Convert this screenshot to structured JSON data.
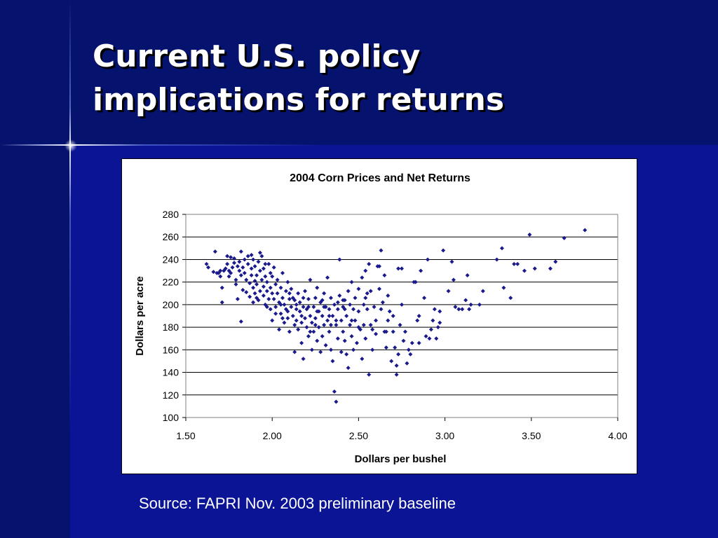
{
  "slide": {
    "title": "Current U.S. policy\nimplications for returns",
    "source": "Source: FAPRI Nov. 2003 preliminary baseline"
  },
  "colors": {
    "background": "#0a1494",
    "band": "#05126e",
    "marker": "#1a1a8c",
    "title_text": "#ffffff"
  },
  "chart_data": {
    "type": "scatter",
    "title": "2004 Corn Prices and Net Returns",
    "xlabel": "Dollars per bushel",
    "ylabel": "Dollars per acre",
    "xlim": [
      1.5,
      4.0
    ],
    "ylim": [
      100,
      280
    ],
    "xticks": [
      "1.50",
      "2.00",
      "2.50",
      "3.00",
      "3.50",
      "4.00"
    ],
    "yticks": [
      "100",
      "120",
      "140",
      "160",
      "180",
      "200",
      "220",
      "240",
      "260",
      "280"
    ],
    "grid": "horizontal",
    "legend": "none",
    "marker": "diamond",
    "points": [
      [
        1.62,
        236
      ],
      [
        1.63,
        233
      ],
      [
        1.66,
        229
      ],
      [
        1.67,
        247
      ],
      [
        1.69,
        228
      ],
      [
        1.7,
        230
      ],
      [
        1.7,
        225
      ],
      [
        1.71,
        215
      ],
      [
        1.71,
        202
      ],
      [
        1.72,
        230
      ],
      [
        1.74,
        236
      ],
      [
        1.74,
        243
      ],
      [
        1.75,
        230
      ],
      [
        1.75,
        225
      ],
      [
        1.76,
        242
      ],
      [
        1.76,
        228
      ],
      [
        1.77,
        233
      ],
      [
        1.78,
        237
      ],
      [
        1.78,
        241
      ],
      [
        1.79,
        222
      ],
      [
        1.79,
        218
      ],
      [
        1.8,
        205
      ],
      [
        1.8,
        234
      ],
      [
        1.81,
        230
      ],
      [
        1.81,
        238
      ],
      [
        1.82,
        247
      ],
      [
        1.82,
        226
      ],
      [
        1.82,
        185
      ],
      [
        1.83,
        233
      ],
      [
        1.83,
        213
      ],
      [
        1.84,
        240
      ],
      [
        1.84,
        228
      ],
      [
        1.85,
        222
      ],
      [
        1.85,
        211
      ],
      [
        1.86,
        236
      ],
      [
        1.86,
        243
      ],
      [
        1.87,
        219
      ],
      [
        1.87,
        207
      ],
      [
        1.88,
        232
      ],
      [
        1.88,
        226
      ],
      [
        1.89,
        240
      ],
      [
        1.89,
        215
      ],
      [
        1.89,
        202
      ],
      [
        1.9,
        234
      ],
      [
        1.9,
        221
      ],
      [
        1.9,
        210
      ],
      [
        1.91,
        226
      ],
      [
        1.91,
        218
      ],
      [
        1.92,
        238
      ],
      [
        1.92,
        204
      ],
      [
        1.93,
        230
      ],
      [
        1.93,
        246
      ],
      [
        1.93,
        212
      ],
      [
        1.94,
        243
      ],
      [
        1.94,
        222
      ],
      [
        1.95,
        216
      ],
      [
        1.95,
        208
      ],
      [
        1.95,
        232
      ],
      [
        1.96,
        200
      ],
      [
        1.96,
        225
      ],
      [
        1.97,
        220
      ],
      [
        1.97,
        212
      ],
      [
        1.98,
        236
      ],
      [
        1.98,
        205
      ],
      [
        1.99,
        228
      ],
      [
        1.99,
        215
      ],
      [
        1.99,
        196
      ],
      [
        2.0,
        210
      ],
      [
        2.0,
        225
      ],
      [
        2.0,
        186
      ],
      [
        2.01,
        205
      ],
      [
        2.01,
        233
      ],
      [
        2.02,
        218
      ],
      [
        2.02,
        198
      ],
      [
        2.03,
        222
      ],
      [
        2.03,
        210
      ],
      [
        2.04,
        178
      ],
      [
        2.04,
        202
      ],
      [
        2.05,
        215
      ],
      [
        2.05,
        192
      ],
      [
        2.06,
        206
      ],
      [
        2.06,
        228
      ],
      [
        2.07,
        200
      ],
      [
        2.07,
        184
      ],
      [
        2.08,
        212
      ],
      [
        2.08,
        196
      ],
      [
        2.09,
        220
      ],
      [
        2.09,
        188
      ],
      [
        2.1,
        205
      ],
      [
        2.1,
        176
      ],
      [
        2.11,
        198
      ],
      [
        2.11,
        214
      ],
      [
        2.12,
        190
      ],
      [
        2.12,
        206
      ],
      [
        2.13,
        182
      ],
      [
        2.13,
        158
      ],
      [
        2.14,
        200
      ],
      [
        2.14,
        186
      ],
      [
        2.15,
        210
      ],
      [
        2.15,
        178
      ],
      [
        2.16,
        194
      ],
      [
        2.16,
        202
      ],
      [
        2.17,
        184
      ],
      [
        2.17,
        166
      ],
      [
        2.18,
        198
      ],
      [
        2.18,
        152
      ],
      [
        2.19,
        188
      ],
      [
        2.19,
        212
      ],
      [
        2.2,
        180
      ],
      [
        2.2,
        196
      ],
      [
        2.21,
        205
      ],
      [
        2.21,
        172
      ],
      [
        2.22,
        190
      ],
      [
        2.22,
        222
      ],
      [
        2.23,
        184
      ],
      [
        2.23,
        160
      ],
      [
        2.24,
        198
      ],
      [
        2.24,
        176
      ],
      [
        2.25,
        206
      ],
      [
        2.25,
        188
      ],
      [
        2.26,
        168
      ],
      [
        2.26,
        215
      ],
      [
        2.27,
        194
      ],
      [
        2.27,
        180
      ],
      [
        2.28,
        202
      ],
      [
        2.28,
        158
      ],
      [
        2.29,
        190
      ],
      [
        2.29,
        172
      ],
      [
        2.3,
        210
      ],
      [
        2.3,
        182
      ],
      [
        2.31,
        198
      ],
      [
        2.31,
        164
      ],
      [
        2.32,
        186
      ],
      [
        2.32,
        224
      ],
      [
        2.33,
        176
      ],
      [
        2.33,
        196
      ],
      [
        2.34,
        206
      ],
      [
        2.34,
        160
      ],
      [
        2.35,
        190
      ],
      [
        2.35,
        150
      ],
      [
        2.36,
        200
      ],
      [
        2.36,
        123
      ],
      [
        2.37,
        182
      ],
      [
        2.37,
        114
      ],
      [
        2.38,
        196
      ],
      [
        2.38,
        170
      ],
      [
        2.39,
        240
      ],
      [
        2.39,
        208
      ],
      [
        2.4,
        186
      ],
      [
        2.4,
        158
      ],
      [
        2.41,
        198
      ],
      [
        2.41,
        176
      ],
      [
        2.42,
        204
      ],
      [
        2.42,
        168
      ],
      [
        2.43,
        190
      ],
      [
        2.43,
        156
      ],
      [
        2.44,
        212
      ],
      [
        2.44,
        144
      ],
      [
        2.45,
        182
      ],
      [
        2.45,
        200
      ],
      [
        2.46,
        172
      ],
      [
        2.46,
        220
      ],
      [
        2.47,
        160
      ],
      [
        2.47,
        196
      ],
      [
        2.48,
        206
      ],
      [
        2.48,
        186
      ],
      [
        2.49,
        166
      ],
      [
        2.5,
        214
      ],
      [
        2.5,
        194
      ],
      [
        2.51,
        178
      ],
      [
        2.52,
        224
      ],
      [
        2.52,
        152
      ],
      [
        2.53,
        200
      ],
      [
        2.53,
        182
      ],
      [
        2.54,
        230
      ],
      [
        2.54,
        170
      ],
      [
        2.55,
        210
      ],
      [
        2.55,
        196
      ],
      [
        2.56,
        138
      ],
      [
        2.56,
        236
      ],
      [
        2.57,
        182
      ],
      [
        2.57,
        212
      ],
      [
        2.58,
        160
      ],
      [
        2.59,
        198
      ],
      [
        2.6,
        186
      ],
      [
        2.6,
        174
      ],
      [
        2.61,
        234
      ],
      [
        2.62,
        214
      ],
      [
        2.63,
        248
      ],
      [
        2.63,
        196
      ],
      [
        2.64,
        202
      ],
      [
        2.65,
        176
      ],
      [
        2.65,
        226
      ],
      [
        2.66,
        162
      ],
      [
        2.67,
        208
      ],
      [
        2.67,
        186
      ],
      [
        2.68,
        194
      ],
      [
        2.69,
        150
      ],
      [
        2.7,
        176
      ],
      [
        2.71,
        162
      ],
      [
        2.72,
        138
      ],
      [
        2.72,
        146
      ],
      [
        2.73,
        156
      ],
      [
        2.73,
        232
      ],
      [
        2.74,
        182
      ],
      [
        2.75,
        200
      ],
      [
        2.75,
        232
      ],
      [
        2.76,
        168
      ],
      [
        2.77,
        176
      ],
      [
        2.78,
        148
      ],
      [
        2.79,
        160
      ],
      [
        2.8,
        156
      ],
      [
        2.81,
        166
      ],
      [
        2.82,
        220
      ],
      [
        2.83,
        220
      ],
      [
        2.84,
        186
      ],
      [
        2.85,
        190
      ],
      [
        2.85,
        166
      ],
      [
        2.86,
        230
      ],
      [
        2.88,
        206
      ],
      [
        2.89,
        172
      ],
      [
        2.9,
        240
      ],
      [
        2.91,
        170
      ],
      [
        2.92,
        178
      ],
      [
        2.93,
        186
      ],
      [
        2.94,
        196
      ],
      [
        2.95,
        170
      ],
      [
        2.96,
        180
      ],
      [
        2.97,
        184
      ],
      [
        2.97,
        194
      ],
      [
        2.99,
        248
      ],
      [
        3.02,
        212
      ],
      [
        3.04,
        238
      ],
      [
        3.05,
        222
      ],
      [
        3.06,
        198
      ],
      [
        3.08,
        196
      ],
      [
        3.1,
        196
      ],
      [
        3.12,
        204
      ],
      [
        3.13,
        226
      ],
      [
        3.14,
        196
      ],
      [
        3.15,
        200
      ],
      [
        3.2,
        200
      ],
      [
        3.22,
        212
      ],
      [
        3.3,
        240
      ],
      [
        3.33,
        250
      ],
      [
        3.34,
        215
      ],
      [
        3.38,
        206
      ],
      [
        3.4,
        236
      ],
      [
        3.42,
        236
      ],
      [
        3.46,
        230
      ],
      [
        3.49,
        262
      ],
      [
        3.52,
        232
      ],
      [
        3.61,
        232
      ],
      [
        3.64,
        238
      ],
      [
        3.69,
        259
      ],
      [
        3.81,
        266
      ],
      [
        1.68,
        228
      ],
      [
        1.73,
        232
      ],
      [
        1.88,
        244
      ],
      [
        1.96,
        236
      ],
      [
        2.02,
        192
      ],
      [
        2.06,
        188
      ],
      [
        2.1,
        210
      ],
      [
        2.14,
        196
      ],
      [
        2.18,
        206
      ],
      [
        2.22,
        176
      ],
      [
        2.26,
        194
      ],
      [
        2.3,
        198
      ],
      [
        2.34,
        182
      ],
      [
        2.38,
        202
      ],
      [
        2.42,
        196
      ],
      [
        2.46,
        186
      ],
      [
        2.5,
        180
      ],
      [
        2.54,
        206
      ],
      [
        2.58,
        178
      ],
      [
        2.62,
        234
      ],
      [
        2.66,
        176
      ],
      [
        2.7,
        190
      ],
      [
        2.13,
        204
      ],
      [
        2.17,
        190
      ],
      [
        2.21,
        198
      ],
      [
        2.25,
        182
      ],
      [
        2.29,
        204
      ],
      [
        2.33,
        190
      ],
      [
        2.37,
        186
      ],
      [
        2.41,
        204
      ],
      [
        2.05,
        200
      ],
      [
        2.09,
        194
      ],
      [
        1.91,
        206
      ],
      [
        1.97,
        198
      ]
    ]
  }
}
